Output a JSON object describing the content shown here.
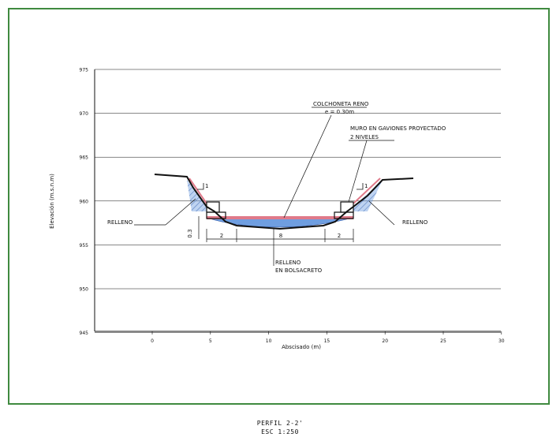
{
  "frame_color": "#3f8a3f",
  "section": {
    "y_axis_label": "Elevación (m.s.n.m)",
    "x_axis_label": "Abscisado (m)",
    "y_ticks": [
      "975",
      "970",
      "965",
      "960",
      "955",
      "950",
      "945"
    ],
    "x_ticks": [
      "0",
      "5",
      "10",
      "15",
      "20",
      "25",
      "30"
    ],
    "annotations": {
      "colchoneta_line1": "COLCHONETA RENO",
      "colchoneta_line2": "e = 0.30m",
      "muro_line1": "MURO EN GAVIONES PROYECTADO",
      "muro_line2": "2 NIVELES",
      "relleno_left": "RELLENO",
      "relleno_right": "RELLENO",
      "bolsacreto_line1": "RELLENO",
      "bolsacreto_line2": "EN BOLSACRETO"
    },
    "dimensions": {
      "height_label": "0.3",
      "left_width": "2",
      "center_width": "8",
      "right_width": "2",
      "slope_left": "1",
      "slope_right": "1"
    },
    "colors": {
      "fill_blue": "#6f9ee0",
      "reno_red": "#e07a8a",
      "ground_line": "#111111"
    }
  },
  "caption": {
    "title": "PERFIL 2-2'",
    "scale": "ESC 1:250"
  }
}
